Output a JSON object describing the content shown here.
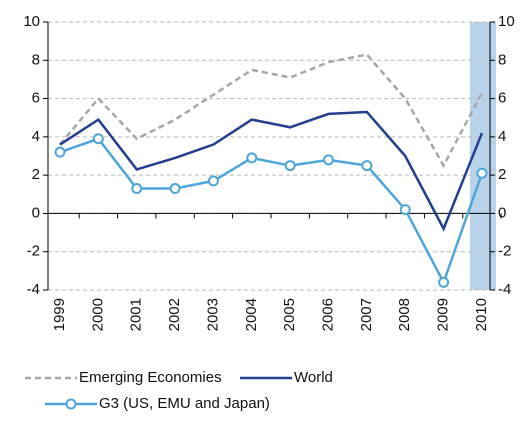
{
  "chart_data": {
    "type": "line",
    "categories": [
      "1999",
      "2000",
      "2001",
      "2002",
      "2003",
      "2004",
      "2005",
      "2006",
      "2007",
      "2008",
      "2009",
      "2010"
    ],
    "series": [
      {
        "name": "Emerging Economies",
        "color": "#a6a6a6",
        "style": "dashed",
        "values": [
          3.6,
          6.0,
          3.9,
          4.9,
          6.2,
          7.5,
          7.1,
          7.9,
          8.3,
          6.0,
          2.5,
          6.3
        ]
      },
      {
        "name": "World",
        "color": "#233f8f",
        "style": "solid",
        "values": [
          3.6,
          4.9,
          2.3,
          2.9,
          3.6,
          4.9,
          4.5,
          5.2,
          5.3,
          3.0,
          -0.8,
          4.2
        ]
      },
      {
        "name": "G3 (US, EMU and Japan)",
        "color": "#4ea5d9",
        "style": "solid",
        "marker": "circle",
        "values": [
          3.2,
          3.9,
          1.3,
          1.3,
          1.7,
          2.9,
          2.5,
          2.8,
          2.5,
          0.2,
          -3.6,
          2.1
        ]
      }
    ],
    "ylim": [
      -4,
      10
    ],
    "yticks": [
      -4,
      -2,
      0,
      2,
      4,
      6,
      8,
      10
    ],
    "y2lim": [
      -4,
      10
    ],
    "y2ticks": [
      -4,
      -2,
      0,
      2,
      4,
      6,
      8,
      10
    ],
    "grid": true
  }
}
